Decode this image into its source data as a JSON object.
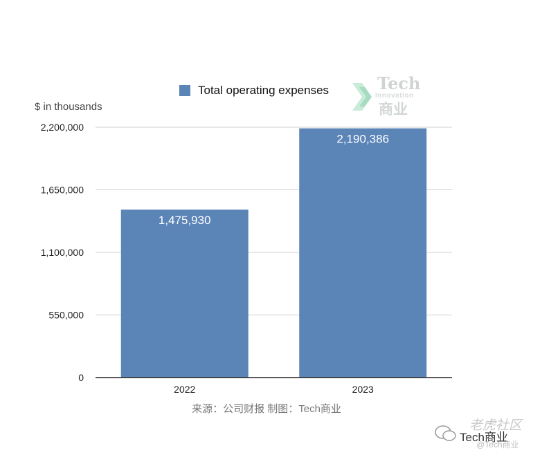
{
  "chart_data": {
    "type": "bar",
    "title": "",
    "ylabel": "$ in thousands",
    "xlabel": "",
    "categories": [
      "2022",
      "2023"
    ],
    "series": [
      {
        "name": "Total operating expenses",
        "values": [
          1475930,
          2190386
        ],
        "labels": [
          "1,475,930",
          "2,190,386"
        ]
      }
    ],
    "ylim": [
      0,
      2200000
    ],
    "yticks": [
      0,
      550000,
      1100000,
      1650000,
      2200000
    ],
    "ytick_labels": [
      "0",
      "550,000",
      "1,100,000",
      "1,650,000",
      "2,200,000"
    ],
    "grid": true,
    "legend_position": "top",
    "colors": {
      "bar": "#5b84b7",
      "grid": "#d0d0d0",
      "axis": "#222222",
      "bar_label": "#ffffff"
    }
  },
  "source_note": "来源：公司财报 制图：Tech商业",
  "logo": {
    "line1": "Tech",
    "line2": "Innovation",
    "line3": "商业"
  },
  "watermark": {
    "line1": "老虎社区",
    "line2": "Tech商业",
    "line3": "@Tech商业"
  }
}
